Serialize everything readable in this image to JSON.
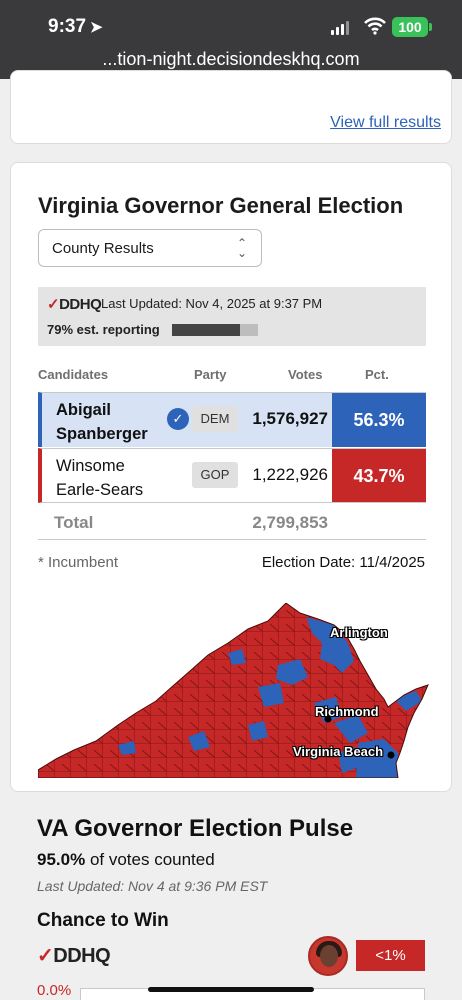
{
  "status_bar": {
    "time": "9:37",
    "battery": "100"
  },
  "browser": {
    "url": "...tion-night.decisiondeskhq.com"
  },
  "top_card": {
    "view_full_results": "View full results"
  },
  "race": {
    "title": "Virginia Governor General Election",
    "dropdown_value": "County Results",
    "source_logo": "DDHQ",
    "last_updated": "Last Updated: Nov 4, 2025 at 9:37 PM",
    "reporting": "79% est. reporting",
    "reporting_fraction": 0.79,
    "columns": [
      "Candidates",
      "Party",
      "Votes",
      "Pct."
    ],
    "candidates": [
      {
        "name_line1": "Abigail",
        "name_line2": "Spanberger",
        "party": "DEM",
        "votes": "1,576,927",
        "pct": "56.3%",
        "winner": true
      },
      {
        "name_line1": "Winsome",
        "name_line2": "Earle-Sears",
        "party": "GOP",
        "votes": "1,222,926",
        "pct": "43.7%",
        "winner": false
      }
    ],
    "total_label": "Total",
    "total_votes": "2,799,853",
    "incumbent_note": "* Incumbent",
    "election_date": "Election Date: 11/4/2025",
    "map_labels": [
      "Arlington",
      "Richmond",
      "Virginia Beach"
    ],
    "colors": {
      "dem": "#2d63b8",
      "gop": "#c62828"
    }
  },
  "pulse": {
    "title": "VA Governor Election Pulse",
    "counted_value": "95.0%",
    "counted_suffix": "of votes counted",
    "last_updated": "Last Updated: Nov 4 at 9:36 PM EST",
    "chance_title": "Chance to Win",
    "logo": "DDHQ",
    "chance_badge": "<1%",
    "axis_start": "0.0%"
  }
}
